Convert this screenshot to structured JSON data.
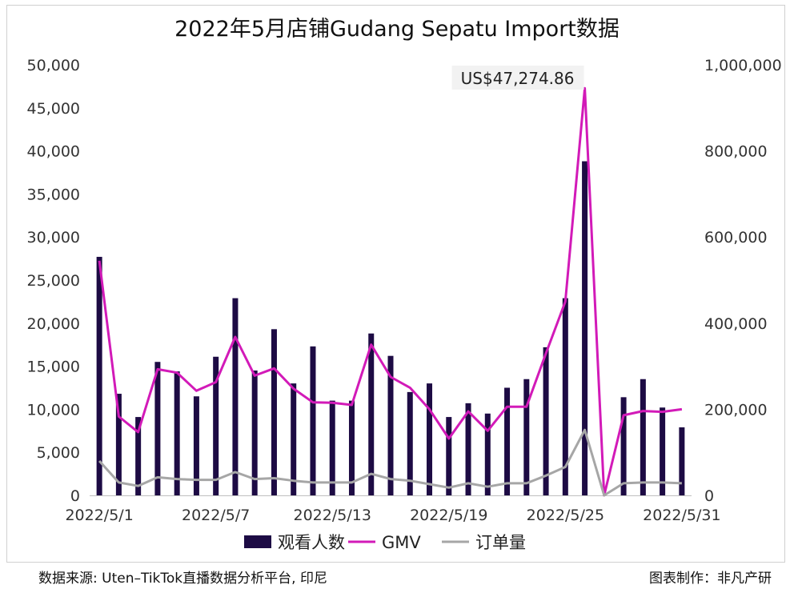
{
  "chart_data": {
    "type": "bar+line",
    "title": "2022年5月店铺Gudang Sepatu Import数据",
    "x": [
      "2022/5/1",
      "2022/5/2",
      "2022/5/3",
      "2022/5/4",
      "2022/5/5",
      "2022/5/6",
      "2022/5/7",
      "2022/5/8",
      "2022/5/9",
      "2022/5/10",
      "2022/5/11",
      "2022/5/12",
      "2022/5/13",
      "2022/5/14",
      "2022/5/15",
      "2022/5/16",
      "2022/5/17",
      "2022/5/18",
      "2022/5/19",
      "2022/5/20",
      "2022/5/21",
      "2022/5/22",
      "2022/5/23",
      "2022/5/24",
      "2022/5/25",
      "2022/5/26",
      "2022/5/27",
      "2022/5/28",
      "2022/5/29",
      "2022/5/30",
      "2022/5/31"
    ],
    "x_tick_labels": [
      "2022/5/1",
      "2022/5/7",
      "2022/5/13",
      "2022/5/19",
      "2022/5/25",
      "2022/5/31"
    ],
    "y_left_ticks": [
      "0",
      "5,000",
      "10,000",
      "15,000",
      "20,000",
      "25,000",
      "30,000",
      "35,000",
      "40,000",
      "45,000",
      "50,000"
    ],
    "y_right_ticks": [
      "0",
      "200,000",
      "400,000",
      "600,000",
      "800,000",
      "1,000,000"
    ],
    "ylim_left": [
      0,
      50000
    ],
    "ylim_right": [
      0,
      1000000
    ],
    "series": [
      {
        "name": "观看人数",
        "kind": "bar",
        "axis": "left",
        "color": "#1d0b44",
        "values": [
          27700,
          11800,
          9100,
          15500,
          14400,
          11500,
          16100,
          22900,
          14500,
          19300,
          13000,
          17300,
          11000,
          11000,
          18800,
          16200,
          12000,
          13000,
          9100,
          10700,
          9500,
          12500,
          13500,
          17200,
          22900,
          38800,
          0,
          11400,
          13500,
          10200,
          7900
        ]
      },
      {
        "name": "GMV",
        "kind": "line",
        "axis": "right",
        "color": "#d21ab8",
        "values": [
          545000,
          183000,
          147000,
          293000,
          285000,
          243000,
          263000,
          368000,
          278000,
          295000,
          248000,
          216000,
          215000,
          210000,
          350000,
          275000,
          250000,
          200000,
          132000,
          195000,
          150000,
          206000,
          206000,
          330000,
          450000,
          945500,
          0,
          186000,
          196000,
          194000,
          200000
        ]
      },
      {
        "name": "订单量",
        "kind": "line",
        "axis": "left",
        "color": "#a6a6a6",
        "values": [
          4000,
          1500,
          1100,
          2100,
          1900,
          1800,
          1800,
          2700,
          1900,
          2000,
          1700,
          1500,
          1500,
          1500,
          2500,
          1900,
          1700,
          1300,
          900,
          1400,
          1000,
          1400,
          1400,
          2300,
          3300,
          7600,
          0,
          1400,
          1500,
          1500,
          1400
        ]
      }
    ],
    "annotation": {
      "text": "US$47,274.86",
      "series": "GMV",
      "index": 25
    },
    "legend_position": "bottom",
    "grid": false
  },
  "footer": {
    "source": "数据来源: Uten–TikTok直播数据分析平台, 印尼",
    "credit": "图表制作：非凡产研"
  }
}
